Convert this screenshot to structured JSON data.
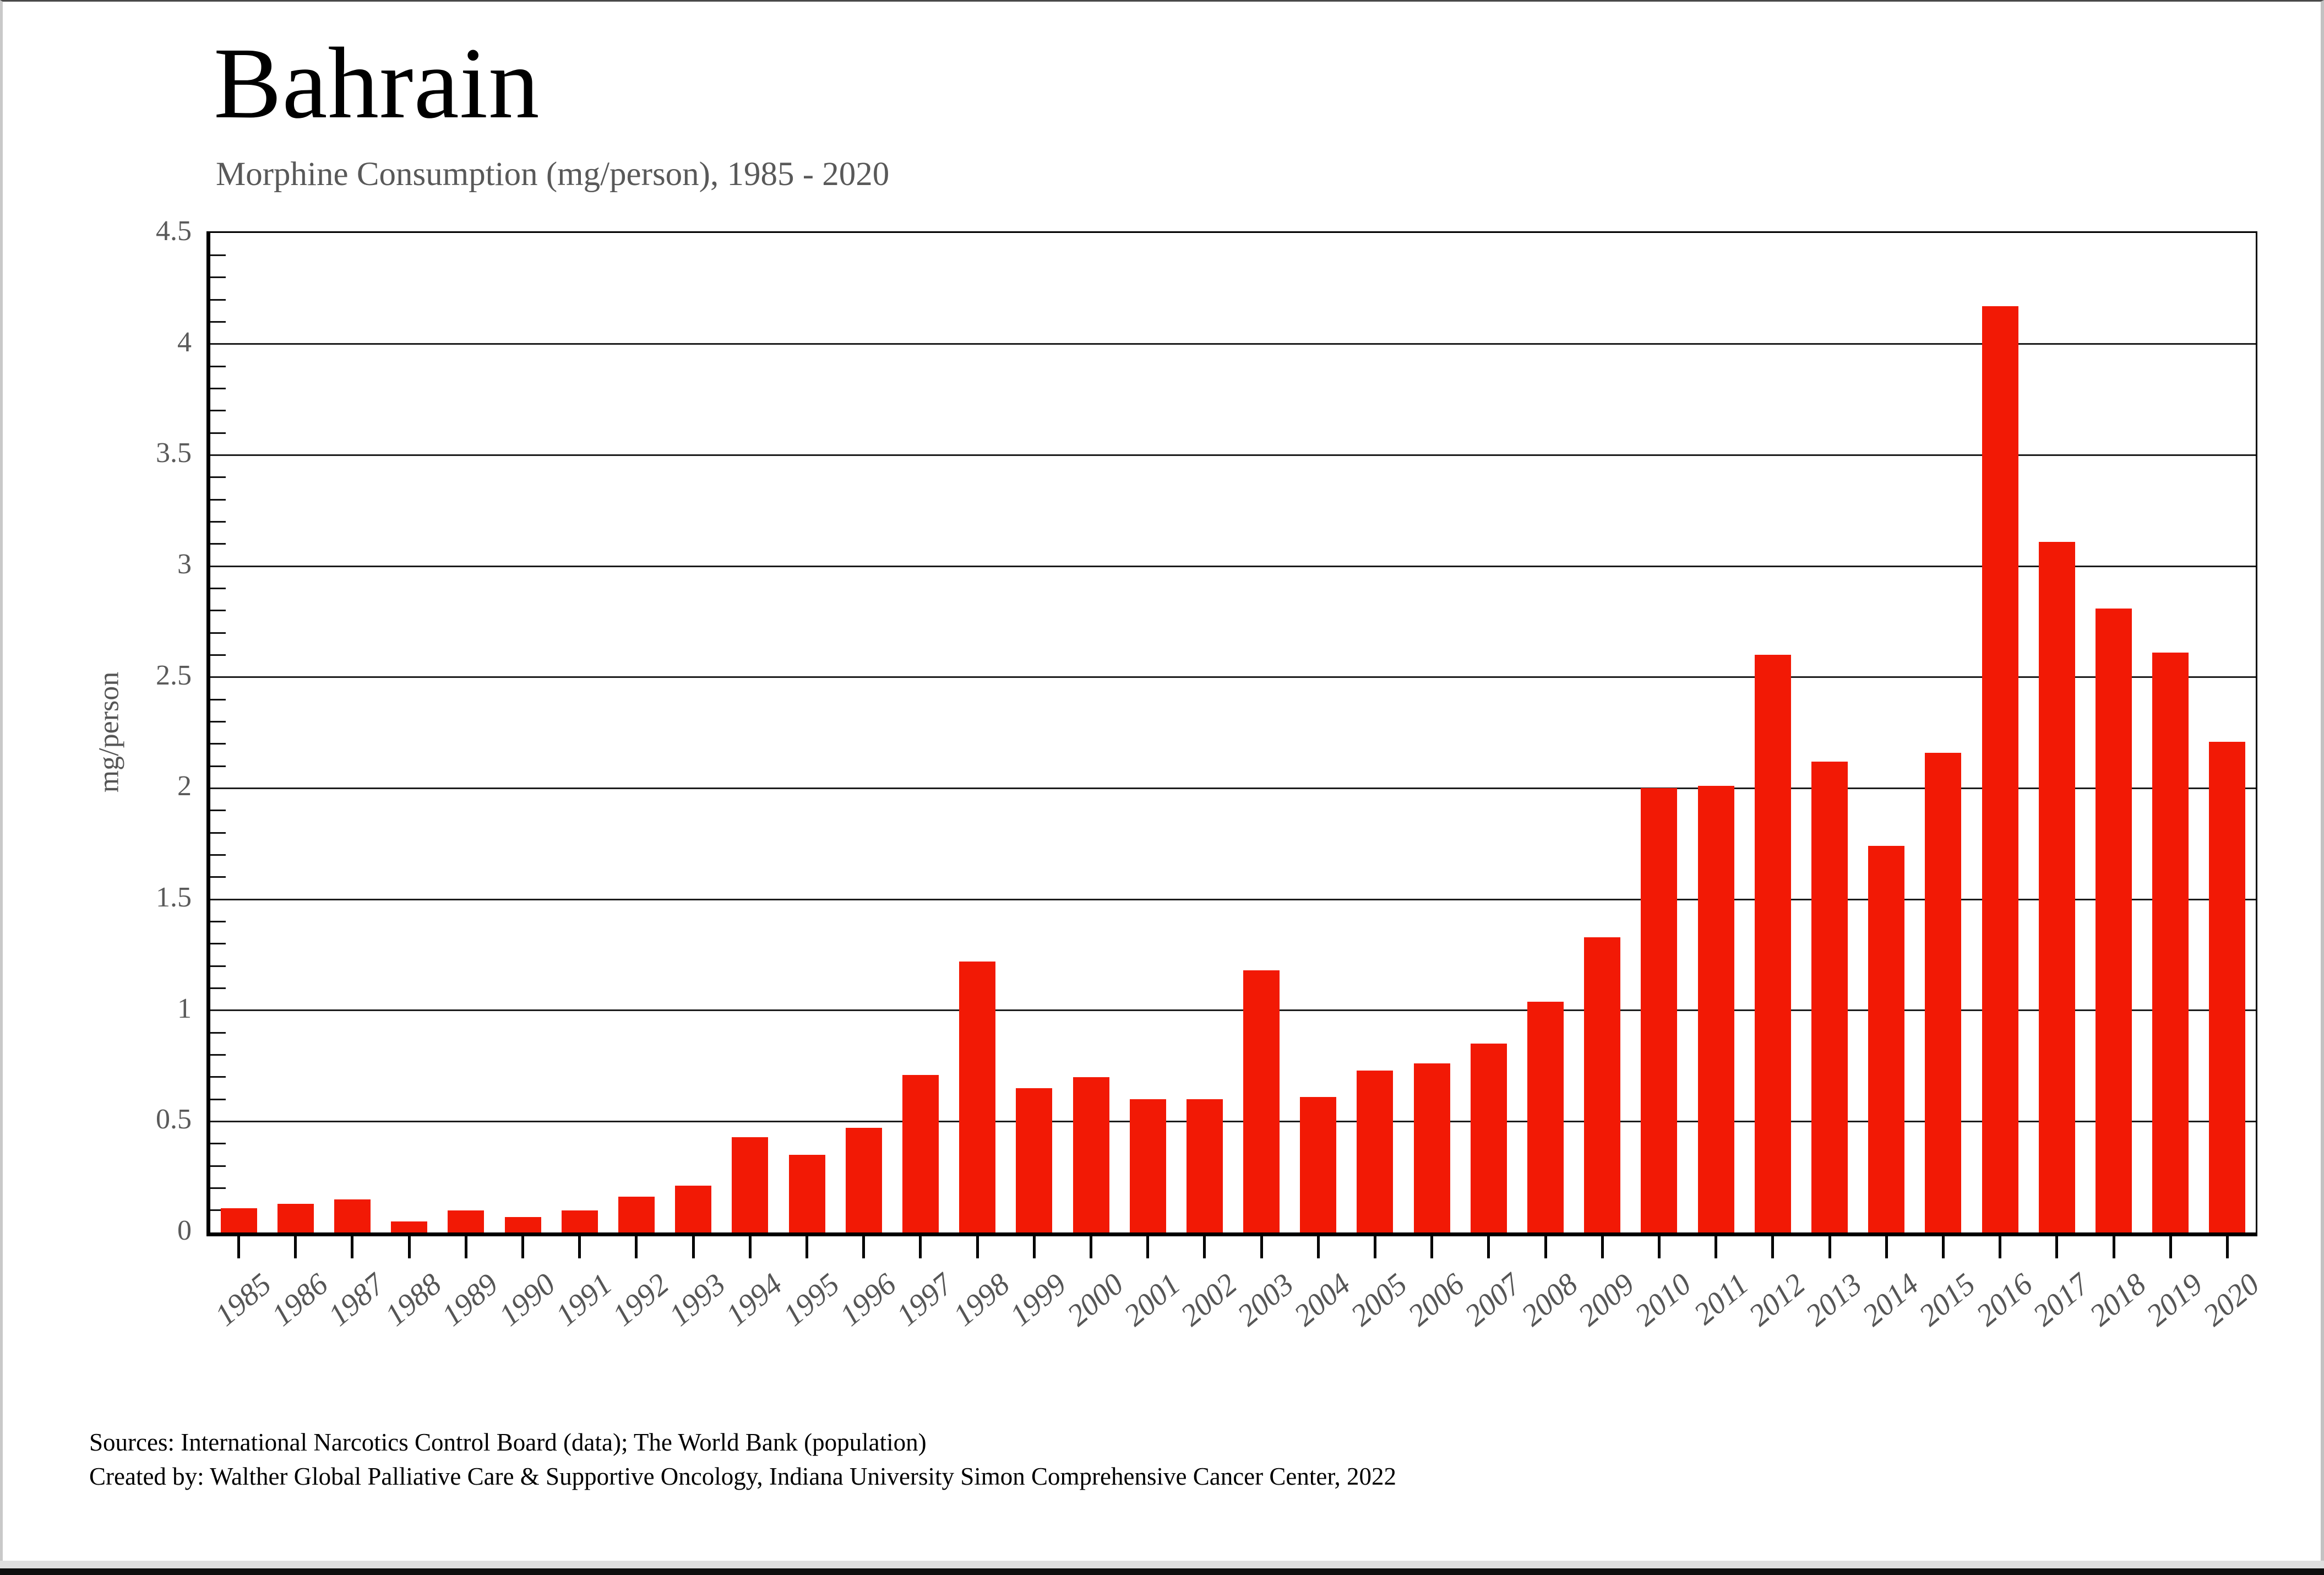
{
  "header": {
    "title": "Bahrain",
    "subtitle": "Morphine Consumption (mg/person), 1985 - 2020"
  },
  "footer": {
    "sources_line": "Sources: International Narcotics Control Board (data); The World Bank (population)",
    "created_line": "Created by: Walther  Global Palliative Care & Supportive Oncology, Indiana University Simon Comprehensive Cancer Center, 2022"
  },
  "colors": {
    "bar": "#F21905",
    "gridline": "#1c1c1c",
    "axis": "#000000",
    "tick_label": "#5a5a5a",
    "subtitle": "#595959",
    "bottom_strip": "#0e0e0e",
    "window_edge": "#c9c9c9"
  },
  "chart_data": {
    "type": "bar",
    "title": "Bahrain",
    "subtitle": "Morphine Consumption (mg/person), 1985 - 2020",
    "xlabel": "",
    "ylabel": "mg/person",
    "ylim": [
      0,
      4.5
    ],
    "y_ticks": [
      0,
      0.5,
      1,
      1.5,
      2,
      2.5,
      3,
      3.5,
      4,
      4.5
    ],
    "y_minor_step": 0.1,
    "grid": "horizontal",
    "legend": "none",
    "bar_color": "#F21905",
    "categories": [
      1985,
      1986,
      1987,
      1988,
      1989,
      1990,
      1991,
      1992,
      1993,
      1994,
      1995,
      1996,
      1997,
      1998,
      1999,
      2000,
      2001,
      2002,
      2003,
      2004,
      2005,
      2006,
      2007,
      2008,
      2009,
      2010,
      2011,
      2012,
      2013,
      2014,
      2015,
      2016,
      2017,
      2018,
      2019,
      2020
    ],
    "values": [
      0.11,
      0.13,
      0.15,
      0.05,
      0.1,
      0.07,
      0.1,
      0.16,
      0.21,
      0.43,
      0.35,
      0.47,
      0.71,
      1.22,
      0.65,
      0.7,
      0.6,
      0.6,
      1.18,
      0.61,
      0.73,
      0.76,
      0.85,
      1.04,
      1.33,
      2.0,
      2.01,
      2.6,
      2.12,
      1.74,
      2.16,
      4.17,
      3.11,
      2.81,
      2.61,
      2.21
    ]
  }
}
